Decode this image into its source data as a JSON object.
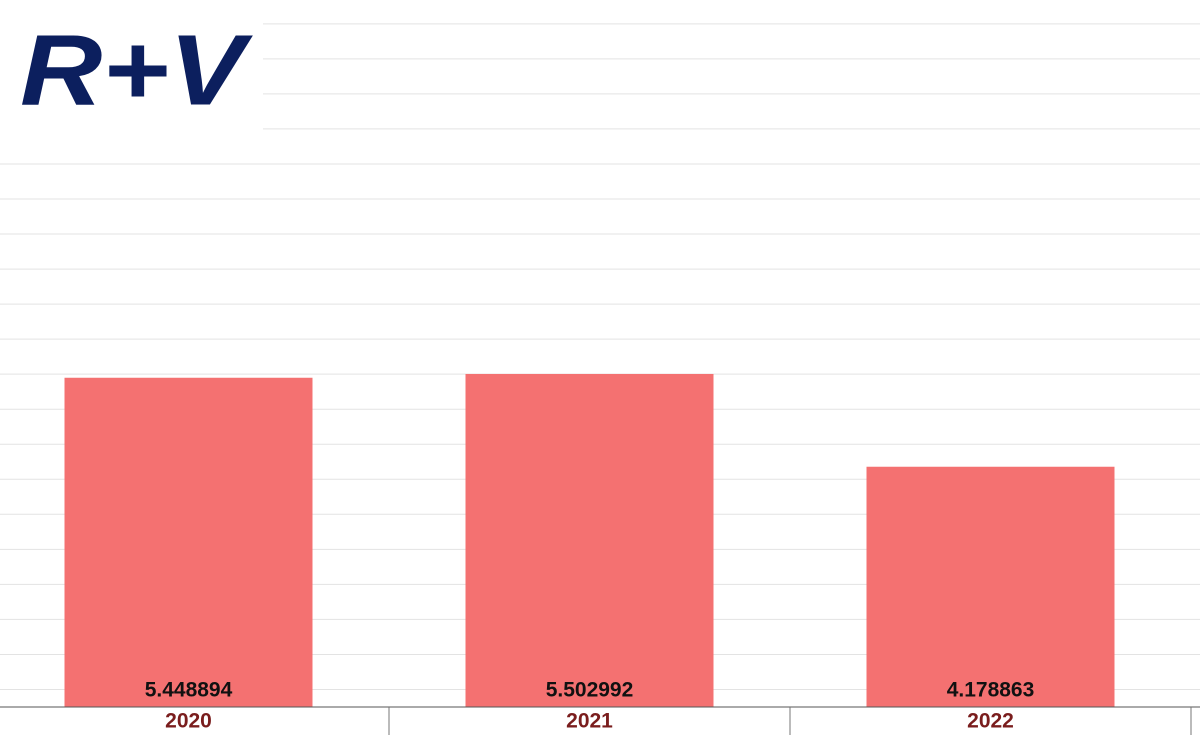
{
  "logo": "R+V",
  "chart_data": {
    "type": "bar",
    "categories": [
      "2020",
      "2021",
      "2022"
    ],
    "values": [
      5.448894,
      5.502992,
      4.178863
    ],
    "color": "#f47171",
    "ylim": [
      0.75,
      10.84
    ],
    "yticks": [
      1,
      1.5,
      2,
      2.5,
      3,
      3.5,
      4,
      4.5,
      5,
      5.5,
      6,
      6.5,
      7,
      7.5,
      8,
      8.5,
      9,
      9.5,
      10,
      10.5
    ],
    "grid": true
  }
}
